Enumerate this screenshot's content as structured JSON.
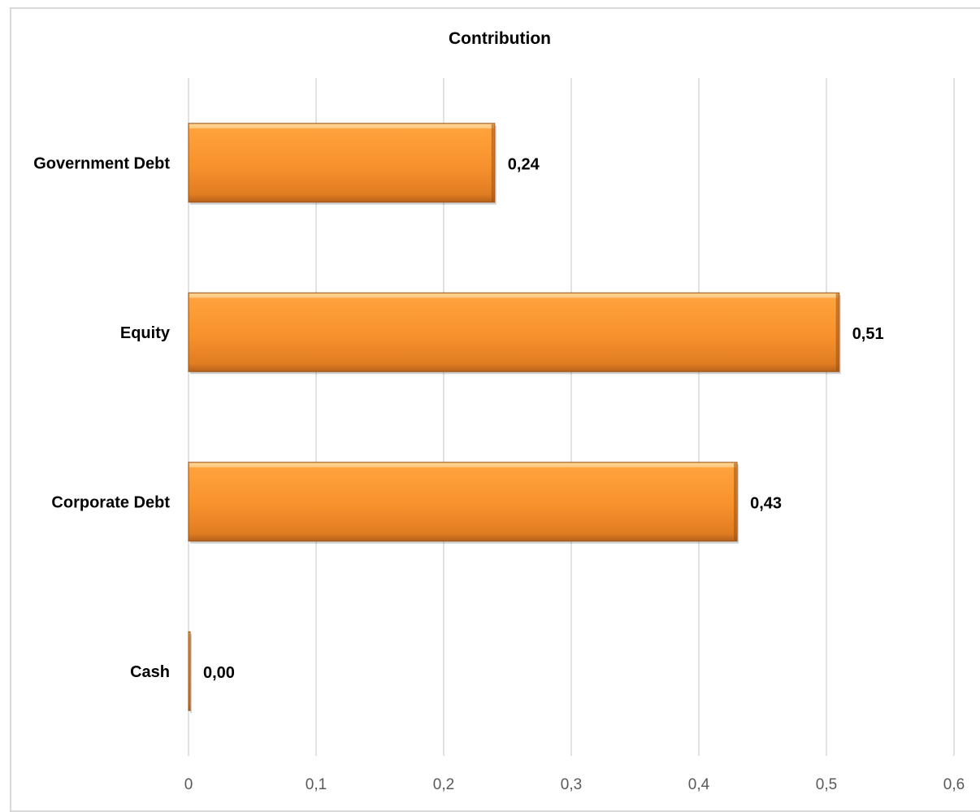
{
  "chart_data": {
    "type": "bar",
    "orientation": "horizontal",
    "title": "Contribution",
    "categories": [
      "Government Debt",
      "Equity",
      "Corporate Debt",
      "Cash"
    ],
    "values": [
      0.24,
      0.51,
      0.43,
      0.0
    ],
    "data_labels": [
      "0,24",
      "0,51",
      "0,43",
      "0,00"
    ],
    "xlim": [
      0,
      0.6
    ],
    "x_ticks": [
      0,
      0.1,
      0.2,
      0.3,
      0.4,
      0.5,
      0.6
    ],
    "x_tick_labels": [
      "0",
      "0,1",
      "0,2",
      "0,3",
      "0,4",
      "0,5",
      "0,6"
    ],
    "xlabel": "",
    "ylabel": "",
    "grid": "vertical",
    "legend": "none",
    "colors": {
      "bar_light": "#ffa23c",
      "bar_mid": "#f28a27",
      "bar_dark": "#b6611b",
      "bar_edge": "#9a5217",
      "grid": "#d9d9d9"
    }
  }
}
